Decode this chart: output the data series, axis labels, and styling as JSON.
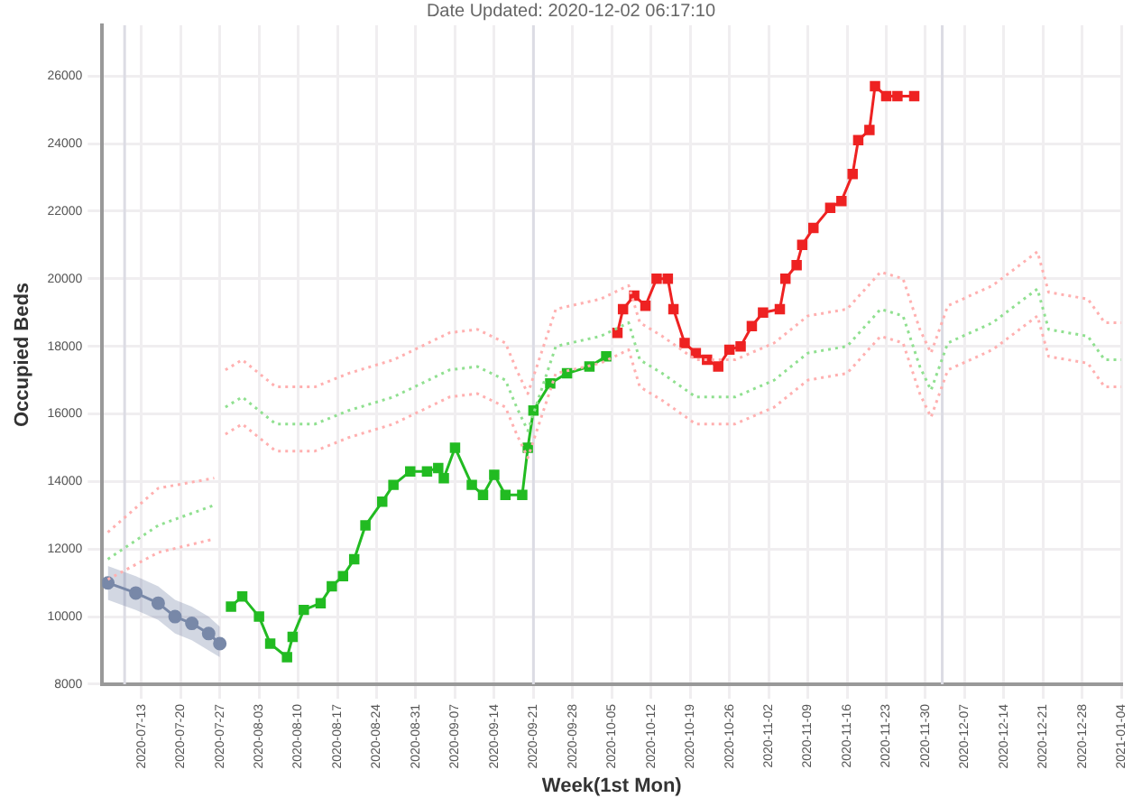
{
  "chart_data": {
    "type": "line",
    "title": "Date Updated: 2020-12-02 06:17:10",
    "xlabel": "Week(1st Mon)",
    "ylabel": "Occupied Beds",
    "xlim": [
      "2020-07-06",
      "2021-01-04"
    ],
    "ylim": [
      8000,
      27500
    ],
    "xticks": [
      "2020-07-13",
      "2020-07-20",
      "2020-07-27",
      "2020-08-03",
      "2020-08-10",
      "2020-08-17",
      "2020-08-24",
      "2020-08-31",
      "2020-09-07",
      "2020-09-14",
      "2020-09-21",
      "2020-09-28",
      "2020-10-05",
      "2020-10-12",
      "2020-10-19",
      "2020-10-26",
      "2020-11-02",
      "2020-11-09",
      "2020-11-16",
      "2020-11-23",
      "2020-11-30",
      "2020-12-07",
      "2020-12-14",
      "2020-12-21",
      "2020-12-28",
      "2021-01-04"
    ],
    "yticks": [
      8000,
      10000,
      12000,
      14000,
      16000,
      18000,
      20000,
      22000,
      24000,
      26000
    ],
    "grid": true,
    "legend": false,
    "ref_lines": [
      {
        "axis": "x",
        "value": "2020-07-10",
        "color": "#dcdce4"
      },
      {
        "axis": "x",
        "value": "2020-09-21",
        "color": "#dcdce4"
      },
      {
        "axis": "x",
        "value": "2020-12-03",
        "color": "#dcdce4"
      }
    ],
    "series": [
      {
        "color": "#ffb0b0",
        "marker": "none",
        "line_style": "dotted",
        "x": [
          "2020-07-07",
          "2020-07-16",
          "2020-07-26",
          "2020-07-27",
          "2020-07-28",
          "2020-07-31",
          "2020-08-06",
          "2020-08-13",
          "2020-08-19",
          "2020-08-27",
          "2020-09-06",
          "2020-09-11",
          "2020-09-16",
          "2020-09-18",
          "2020-09-20",
          "2020-09-25",
          "2020-10-03",
          "2020-10-08",
          "2020-10-10",
          "2020-10-14",
          "2020-10-20",
          "2020-10-27",
          "2020-11-03",
          "2020-11-09",
          "2020-11-16",
          "2020-11-22",
          "2020-11-26",
          "2020-11-29",
          "2020-12-01",
          "2020-12-04",
          "2020-12-12",
          "2020-12-20",
          "2020-12-22",
          "2020-12-29",
          "2021-01-01",
          "2021-01-04"
        ],
        "values": [
          12500,
          13800,
          14100,
          null,
          17300,
          17600,
          16800,
          16800,
          17200,
          17600,
          18400,
          18500,
          18100,
          17300,
          16600,
          19100,
          19400,
          19800,
          18700,
          18300,
          17600,
          17600,
          18100,
          18900,
          19100,
          20200,
          20000,
          18500,
          17800,
          19200,
          19800,
          20800,
          19600,
          19400,
          18700,
          18700
        ]
      },
      {
        "color": "#90e090",
        "marker": "none",
        "line_style": "dotted",
        "x": [
          "2020-07-07",
          "2020-07-16",
          "2020-07-26",
          "2020-07-27",
          "2020-07-28",
          "2020-07-31",
          "2020-08-06",
          "2020-08-13",
          "2020-08-19",
          "2020-08-27",
          "2020-09-06",
          "2020-09-11",
          "2020-09-16",
          "2020-09-18",
          "2020-09-20",
          "2020-09-25",
          "2020-10-03",
          "2020-10-08",
          "2020-10-10",
          "2020-10-14",
          "2020-10-20",
          "2020-10-27",
          "2020-11-03",
          "2020-11-09",
          "2020-11-16",
          "2020-11-22",
          "2020-11-26",
          "2020-11-29",
          "2020-12-01",
          "2020-12-04",
          "2020-12-12",
          "2020-12-20",
          "2020-12-22",
          "2020-12-29",
          "2021-01-01",
          "2021-01-04"
        ],
        "values": [
          11700,
          12700,
          13300,
          null,
          16200,
          16500,
          15700,
          15700,
          16100,
          16500,
          17300,
          17400,
          17000,
          16200,
          15500,
          18000,
          18300,
          18700,
          17600,
          17200,
          16500,
          16500,
          17000,
          17800,
          18000,
          19100,
          18900,
          17400,
          16700,
          18100,
          18700,
          19700,
          18500,
          18300,
          17600,
          17600
        ]
      },
      {
        "color": "#ffb0b0",
        "marker": "none",
        "line_style": "dotted",
        "x": [
          "2020-07-07",
          "2020-07-16",
          "2020-07-26",
          "2020-07-27",
          "2020-07-28",
          "2020-07-31",
          "2020-08-06",
          "2020-08-13",
          "2020-08-19",
          "2020-08-27",
          "2020-09-06",
          "2020-09-11",
          "2020-09-16",
          "2020-09-18",
          "2020-09-20",
          "2020-09-25",
          "2020-10-03",
          "2020-10-08",
          "2020-10-10",
          "2020-10-14",
          "2020-10-20",
          "2020-10-27",
          "2020-11-03",
          "2020-11-09",
          "2020-11-16",
          "2020-11-22",
          "2020-11-26",
          "2020-11-29",
          "2020-12-01",
          "2020-12-04",
          "2020-12-12",
          "2020-12-20",
          "2020-12-22",
          "2020-12-29",
          "2021-01-01",
          "2021-01-04"
        ],
        "values": [
          11100,
          11900,
          12300,
          null,
          15400,
          15700,
          14900,
          14900,
          15300,
          15700,
          16500,
          16600,
          16200,
          15400,
          14700,
          17200,
          17500,
          17900,
          16800,
          16400,
          15700,
          15700,
          16200,
          17000,
          17200,
          18300,
          18100,
          16600,
          15900,
          17300,
          17900,
          18900,
          17700,
          17500,
          16800,
          16800
        ]
      },
      {
        "color": "#7888a8",
        "marker": "circle",
        "line_style": "solid",
        "x": [
          "2020-07-07",
          "2020-07-12",
          "2020-07-16",
          "2020-07-19",
          "2020-07-22",
          "2020-07-25",
          "2020-07-27"
        ],
        "values": [
          11000,
          10700,
          10400,
          10000,
          9800,
          9500,
          9200
        ],
        "lower": [
          10500,
          10200,
          9900,
          9500,
          9300,
          9000,
          8800
        ],
        "upper": [
          11500,
          11200,
          10900,
          10500,
          10300,
          10000,
          9700
        ]
      },
      {
        "color": "#22bb22",
        "marker": "square",
        "line_style": "solid",
        "x": [
          "2020-07-29",
          "2020-07-31",
          "2020-08-03",
          "2020-08-05",
          "2020-08-08",
          "2020-08-09",
          "2020-08-11",
          "2020-08-14",
          "2020-08-16",
          "2020-08-18",
          "2020-08-20",
          "2020-08-22",
          "2020-08-25",
          "2020-08-27",
          "2020-08-30",
          "2020-09-02",
          "2020-09-04",
          "2020-09-05",
          "2020-09-07",
          "2020-09-10",
          "2020-09-12",
          "2020-09-14",
          "2020-09-16",
          "2020-09-19",
          "2020-09-20",
          "2020-09-21",
          "2020-09-24",
          "2020-09-27",
          "2020-10-01",
          "2020-10-04"
        ],
        "values": [
          10300,
          10600,
          10000,
          9200,
          8800,
          9400,
          10200,
          10400,
          10900,
          11200,
          11700,
          12700,
          13400,
          13900,
          14300,
          14300,
          14400,
          14100,
          15000,
          13900,
          13600,
          14200,
          13600,
          13600,
          15000,
          16100,
          16900,
          17200,
          17400,
          17700
        ]
      },
      {
        "color": "#ee2222",
        "marker": "square",
        "line_style": "solid",
        "x": [
          "2020-10-06",
          "2020-10-07",
          "2020-10-09",
          "2020-10-11",
          "2020-10-13",
          "2020-10-15",
          "2020-10-16",
          "2020-10-18",
          "2020-10-20",
          "2020-10-22",
          "2020-10-24",
          "2020-10-26",
          "2020-10-28",
          "2020-10-30",
          "2020-11-01",
          "2020-11-04",
          "2020-11-05",
          "2020-11-07",
          "2020-11-08",
          "2020-11-10",
          "2020-11-13",
          "2020-11-15",
          "2020-11-17",
          "2020-11-18",
          "2020-11-20",
          "2020-11-21",
          "2020-11-23",
          "2020-11-25",
          "2020-11-28"
        ],
        "values": [
          18400,
          19100,
          19500,
          19200,
          20000,
          20000,
          19100,
          18100,
          17800,
          17600,
          17400,
          17900,
          18000,
          18600,
          19000,
          19100,
          20000,
          20400,
          21000,
          21500,
          22100,
          22300,
          23100,
          24100,
          24400,
          25700,
          25400,
          25400,
          25400
        ]
      }
    ]
  }
}
